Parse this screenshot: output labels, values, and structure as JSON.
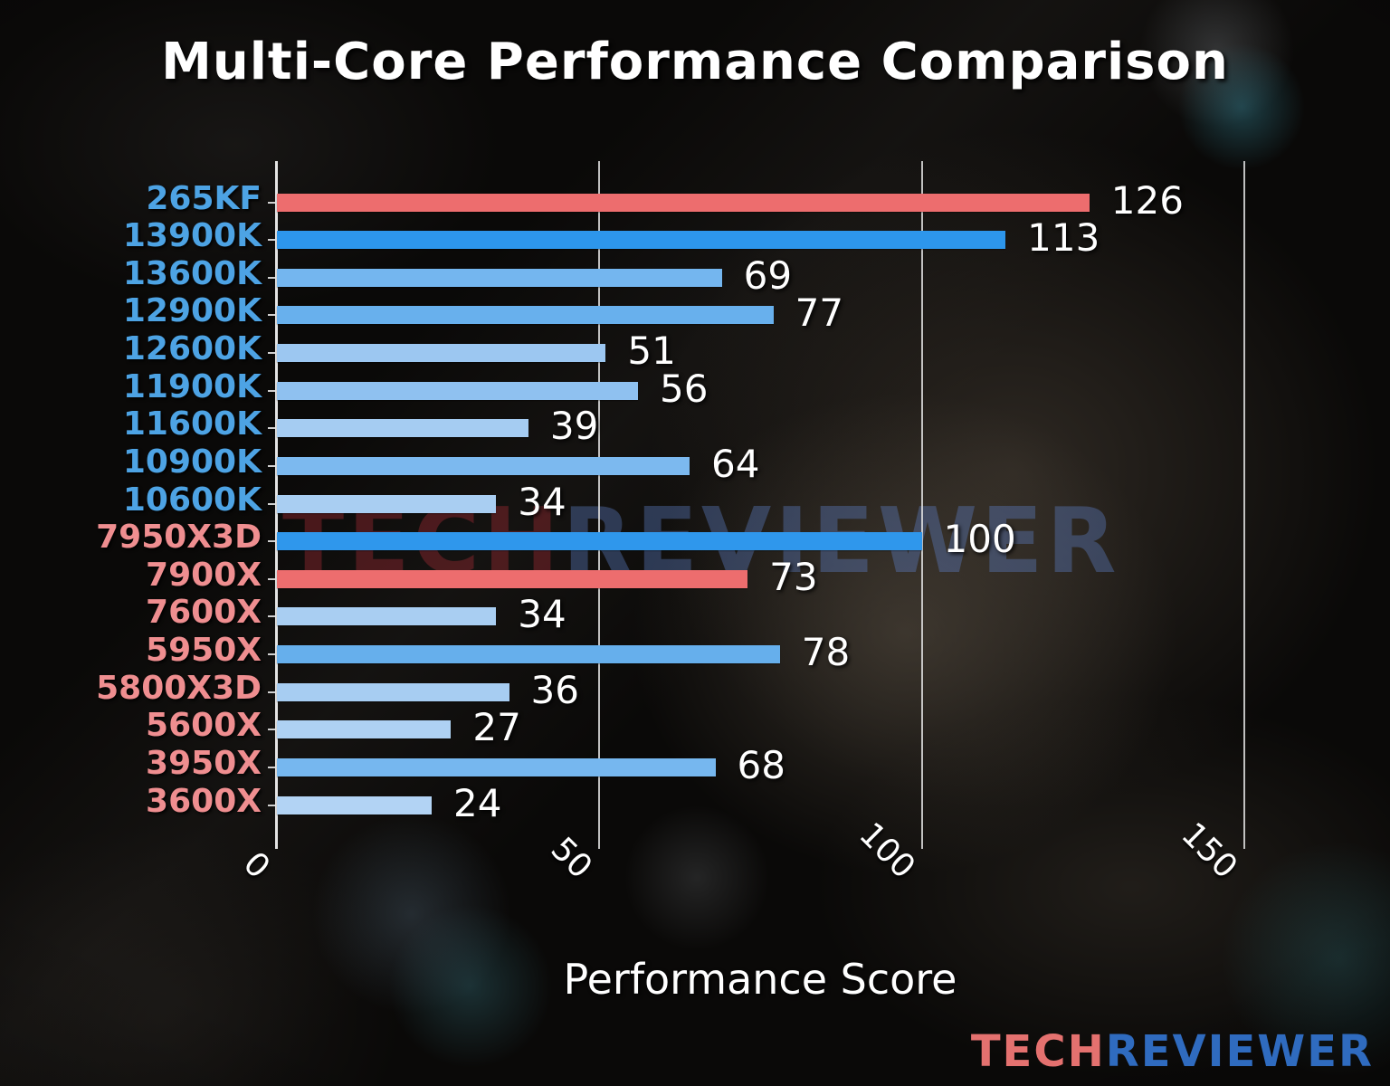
{
  "title": "Multi-Core Performance Comparison",
  "xlabel": "Performance Score",
  "watermark": {
    "part1": "TECH",
    "part2": "REVIEWER"
  },
  "footer_logo": {
    "part1": "TECH",
    "part2": "REVIEWER"
  },
  "colors": {
    "intel_label": "#4da3e4",
    "amd_label": "#ef8e90",
    "highlight_red_bar": "#ed6d6e",
    "strong_blue_bar": "#2d96ec",
    "title_text": "#ffffff",
    "gridline": "#e1e1e1"
  },
  "chart_data": {
    "type": "bar",
    "orientation": "horizontal",
    "title": "Multi-Core Performance Comparison",
    "xlabel": "Performance Score",
    "ylabel": "",
    "xlim": [
      0,
      162
    ],
    "xticks": [
      0,
      50,
      100,
      150
    ],
    "grid": "vertical",
    "legend": "none",
    "categories": [
      "265KF",
      "13900K",
      "13600K",
      "12900K",
      "12600K",
      "11900K",
      "11600K",
      "10900K",
      "10600K",
      "7950X3D",
      "7900X",
      "7600X",
      "5950X",
      "5800X3D",
      "5600X",
      "3950X",
      "3600X"
    ],
    "values": [
      126,
      113,
      69,
      77,
      51,
      56,
      39,
      64,
      34,
      100,
      73,
      34,
      78,
      36,
      27,
      68,
      24
    ],
    "items": [
      {
        "label": "265KF",
        "value": 126,
        "brand": "intel",
        "bar_color": "#ed6d6e"
      },
      {
        "label": "13900K",
        "value": 113,
        "brand": "intel",
        "bar_color": "#2d96ec"
      },
      {
        "label": "13600K",
        "value": 69,
        "brand": "intel",
        "bar_color": "#74b6ef"
      },
      {
        "label": "12900K",
        "value": 77,
        "brand": "intel",
        "bar_color": "#68b0ed"
      },
      {
        "label": "12600K",
        "value": 51,
        "brand": "intel",
        "bar_color": "#9cc7f1"
      },
      {
        "label": "11900K",
        "value": 56,
        "brand": "intel",
        "bar_color": "#8fc1f0"
      },
      {
        "label": "11600K",
        "value": 39,
        "brand": "intel",
        "bar_color": "#a5ccf2"
      },
      {
        "label": "10900K",
        "value": 64,
        "brand": "intel",
        "bar_color": "#7cb9ef"
      },
      {
        "label": "10600K",
        "value": 34,
        "brand": "intel",
        "bar_color": "#a9cef2"
      },
      {
        "label": "7950X3D",
        "value": 100,
        "brand": "amd",
        "bar_color": "#2f97ec"
      },
      {
        "label": "7900X",
        "value": 73,
        "brand": "amd",
        "bar_color": "#ed6d6e"
      },
      {
        "label": "7600X",
        "value": 34,
        "brand": "amd",
        "bar_color": "#a9cef2"
      },
      {
        "label": "5950X",
        "value": 78,
        "brand": "amd",
        "bar_color": "#66afec"
      },
      {
        "label": "5800X3D",
        "value": 36,
        "brand": "amd",
        "bar_color": "#a7cdf2"
      },
      {
        "label": "5600X",
        "value": 27,
        "brand": "amd",
        "bar_color": "#aed1f3"
      },
      {
        "label": "3950X",
        "value": 68,
        "brand": "amd",
        "bar_color": "#76b7ef"
      },
      {
        "label": "3600X",
        "value": 24,
        "brand": "amd",
        "bar_color": "#b2d3f4"
      }
    ]
  }
}
